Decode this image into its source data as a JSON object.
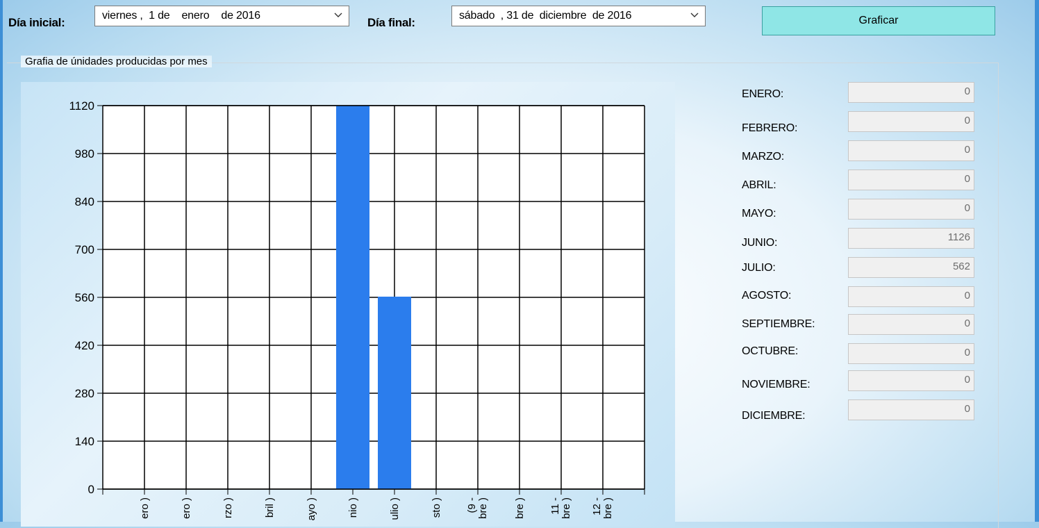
{
  "toolbar": {
    "start_label": "Día inicial:",
    "start_date": "viernes ,  1 de    enero    de 2016",
    "end_label": "Día final:",
    "end_date": "sábado  , 31 de  diciembre  de 2016",
    "graph_button": "Graficar",
    "button_color": "#8fe6e6"
  },
  "group": {
    "title": "Grafia de únidades producidas por mes"
  },
  "chart_data": {
    "type": "bar",
    "categories": [
      "ero )",
      "ero )",
      "rzo )",
      "bril )",
      "ayo )",
      "nio )",
      "ulio )",
      "sto )",
      "(9 - bre )",
      "bre )",
      "11 - bre )",
      "12 - bre )"
    ],
    "values": [
      0,
      0,
      0,
      0,
      0,
      1126,
      562,
      0,
      0,
      0,
      0,
      0
    ],
    "ylim": [
      0,
      1120
    ],
    "yticks": [
      0,
      140,
      280,
      420,
      560,
      700,
      840,
      980,
      1120
    ],
    "grid": true,
    "bar_color": "#2b7ded",
    "title": "",
    "xlabel": "",
    "ylabel": ""
  },
  "months": [
    {
      "label": "ENERO:",
      "value": "0"
    },
    {
      "label": "FEBRERO:",
      "value": "0"
    },
    {
      "label": "MARZO:",
      "value": "0"
    },
    {
      "label": "ABRIL:",
      "value": "0"
    },
    {
      "label": "MAYO:",
      "value": "0"
    },
    {
      "label": "JUNIO:",
      "value": "1126"
    },
    {
      "label": "JULIO:",
      "value": "562"
    },
    {
      "label": "AGOSTO:",
      "value": "0"
    },
    {
      "label": "SEPTIEMBRE:",
      "value": "0"
    },
    {
      "label": "OCTUBRE:",
      "value": "0"
    },
    {
      "label": "NOVIEMBRE:",
      "value": "0"
    },
    {
      "label": "DICIEMBRE:",
      "value": "0"
    }
  ]
}
